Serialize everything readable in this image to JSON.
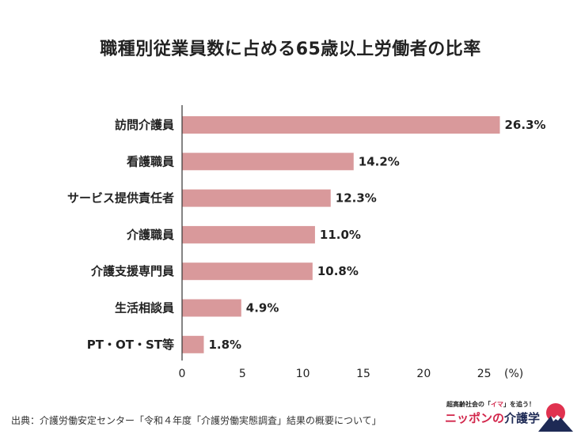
{
  "chart_data": {
    "type": "bar",
    "orientation": "horizontal",
    "title": "職種別従業員数に占める65歳以上労働者の比率",
    "categories": [
      "訪問介護員",
      "看護職員",
      "サービス提供責任者",
      "介護職員",
      "介護支援専門員",
      "生活相談員",
      "PT・OT・ST等"
    ],
    "values": [
      26.3,
      14.2,
      12.3,
      11.0,
      10.8,
      4.9,
      1.8
    ],
    "value_labels": [
      "26.3%",
      "14.2%",
      "12.3%",
      "11.0%",
      "10.8%",
      "4.9%",
      "1.8%"
    ],
    "xlim": [
      0,
      30
    ],
    "xticks": [
      0,
      5,
      10,
      15,
      20,
      25
    ],
    "xlabel": "",
    "unit": "(%)",
    "ylabel": "",
    "grid": false,
    "bar_color": "#d9999b"
  },
  "footer": {
    "source": "出典：介護労働安定センター「令和４年度「介護労働実態調査」結果の概要について」"
  },
  "logo": {
    "tagline_pre": "超高齢社会の「",
    "tagline_highlight": "イマ",
    "tagline_post": "」を追う！",
    "name_main": "ニッポンの",
    "name_accent": "介護学",
    "mark_icon": "mount-fuji-sun-icon"
  }
}
